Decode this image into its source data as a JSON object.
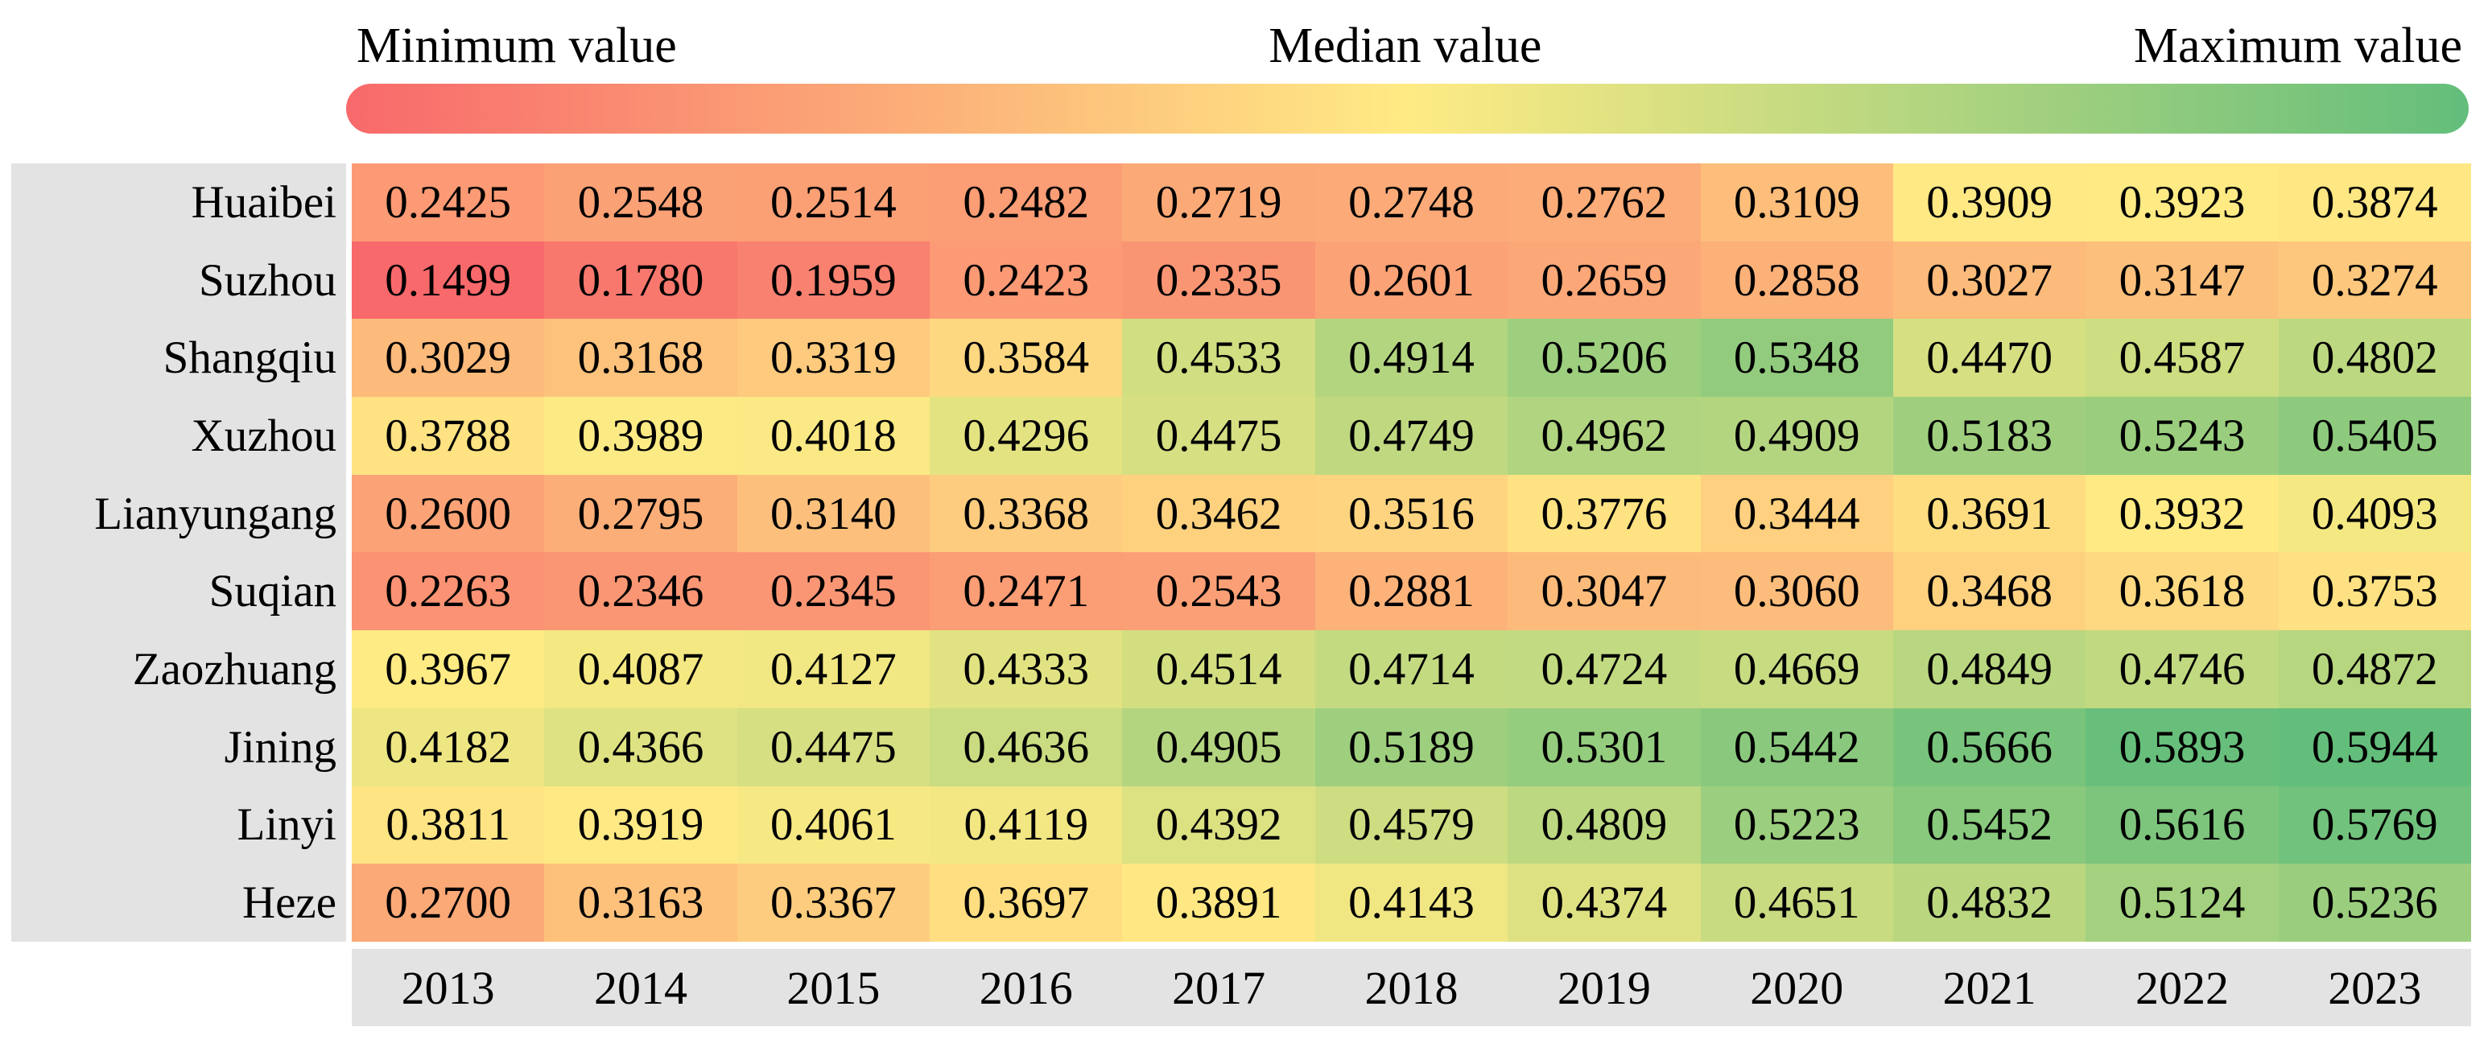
{
  "legend": {
    "min_label": "Minimum value",
    "median_label": "Median value",
    "max_label": "Maximum value"
  },
  "colors": {
    "scale_min": "#F8696B",
    "scale_mid": "#FFEB84",
    "scale_max": "#63BE7B",
    "label_background": "#E3E3E3",
    "page_background": "#FFFFFF",
    "text": "#000000"
  },
  "chart_data": {
    "type": "heatmap",
    "legend_labels": [
      "Minimum value",
      "Median value",
      "Maximum value"
    ],
    "color_scale": {
      "min_color": "#F8696B",
      "mid_color": "#FFEB84",
      "max_color": "#63BE7B",
      "min_anchor": "minimum value",
      "mid_anchor": "median value",
      "max_anchor": "maximum value",
      "interpolation": "linear-rgb"
    },
    "value_format": "4 decimal places",
    "x_tick_labels": [
      "2013",
      "2014",
      "2015",
      "2016",
      "2017",
      "2018",
      "2019",
      "2020",
      "2021",
      "2022",
      "2023"
    ],
    "y_tick_labels": [
      "Huaibei",
      "Suzhou",
      "Shangqiu",
      "Xuzhou",
      "Lianyungang",
      "Suqian",
      "Zaozhuang",
      "Jining",
      "Linyi",
      "Heze"
    ],
    "rows": [
      {
        "name": "Huaibei",
        "values": [
          0.2425,
          0.2548,
          0.2514,
          0.2482,
          0.2719,
          0.2748,
          0.2762,
          0.3109,
          0.3909,
          0.3923,
          0.3874
        ]
      },
      {
        "name": "Suzhou",
        "values": [
          0.1499,
          0.178,
          0.1959,
          0.2423,
          0.2335,
          0.2601,
          0.2659,
          0.2858,
          0.3027,
          0.3147,
          0.3274
        ]
      },
      {
        "name": "Shangqiu",
        "values": [
          0.3029,
          0.3168,
          0.3319,
          0.3584,
          0.4533,
          0.4914,
          0.5206,
          0.5348,
          0.447,
          0.4587,
          0.4802
        ]
      },
      {
        "name": "Xuzhou",
        "values": [
          0.3788,
          0.3989,
          0.4018,
          0.4296,
          0.4475,
          0.4749,
          0.4962,
          0.4909,
          0.5183,
          0.5243,
          0.5405
        ]
      },
      {
        "name": "Lianyungang",
        "values": [
          0.26,
          0.2795,
          0.314,
          0.3368,
          0.3462,
          0.3516,
          0.3776,
          0.3444,
          0.3691,
          0.3932,
          0.4093
        ]
      },
      {
        "name": "Suqian",
        "values": [
          0.2263,
          0.2346,
          0.2345,
          0.2471,
          0.2543,
          0.2881,
          0.3047,
          0.306,
          0.3468,
          0.3618,
          0.3753
        ]
      },
      {
        "name": "Zaozhuang",
        "values": [
          0.3967,
          0.4087,
          0.4127,
          0.4333,
          0.4514,
          0.4714,
          0.4724,
          0.4669,
          0.4849,
          0.4746,
          0.4872
        ]
      },
      {
        "name": "Jining",
        "values": [
          0.4182,
          0.4366,
          0.4475,
          0.4636,
          0.4905,
          0.5189,
          0.5301,
          0.5442,
          0.5666,
          0.5893,
          0.5944
        ]
      },
      {
        "name": "Linyi",
        "values": [
          0.3811,
          0.3919,
          0.4061,
          0.4119,
          0.4392,
          0.4579,
          0.4809,
          0.5223,
          0.5452,
          0.5616,
          0.5769
        ]
      },
      {
        "name": "Heze",
        "values": [
          0.27,
          0.3163,
          0.3367,
          0.3697,
          0.3891,
          0.4143,
          0.4374,
          0.4651,
          0.4832,
          0.5124,
          0.5236
        ]
      }
    ]
  }
}
